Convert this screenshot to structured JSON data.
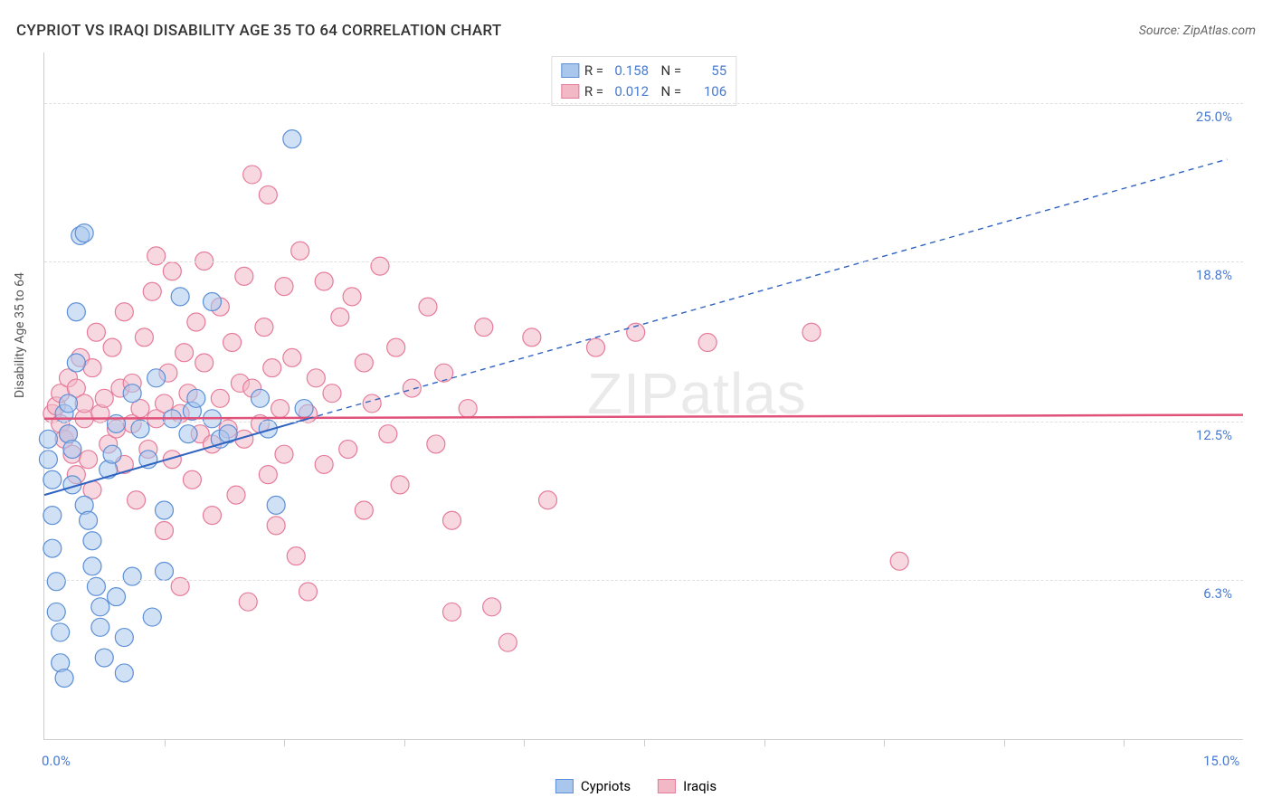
{
  "title": "CYPRIOT VS IRAQI DISABILITY AGE 35 TO 64 CORRELATION CHART",
  "source": "Source: ZipAtlas.com",
  "watermark": "ZIPatlas",
  "y_axis_label": "Disability Age 35 to 64",
  "chart": {
    "type": "scatter",
    "xlim": [
      0,
      15
    ],
    "ylim": [
      0,
      27
    ],
    "x_ticks_minor": [
      1.5,
      3.0,
      4.5,
      6.0,
      7.5,
      9.0,
      10.5,
      12.0,
      13.5
    ],
    "x_tick_labels": [
      {
        "v": 0.0,
        "label": "0.0%"
      },
      {
        "v": 15.0,
        "label": "15.0%"
      }
    ],
    "y_grid": [
      {
        "v": 6.3,
        "label": "6.3%"
      },
      {
        "v": 12.5,
        "label": "12.5%"
      },
      {
        "v": 18.8,
        "label": "18.8%"
      },
      {
        "v": 25.0,
        "label": "25.0%"
      }
    ],
    "background_color": "#ffffff",
    "grid_color": "#e0e0e0",
    "axis_color": "#cccccc",
    "series": {
      "cypriots": {
        "label": "Cypriots",
        "color_fill": "#a9c7ec",
        "color_stroke": "#5b8fd6",
        "fill_opacity": 0.55,
        "marker_radius": 10,
        "R": "0.158",
        "N": "55",
        "trend": {
          "solid": {
            "x1": 0.0,
            "y1": 9.6,
            "x2": 3.3,
            "y2": 12.6
          },
          "dashed": {
            "x1": 3.3,
            "y1": 12.6,
            "x2": 14.8,
            "y2": 22.8
          },
          "stroke": "#2f63c0",
          "width": 2
        },
        "points": [
          [
            0.05,
            11.0
          ],
          [
            0.05,
            11.8
          ],
          [
            0.1,
            10.2
          ],
          [
            0.1,
            8.8
          ],
          [
            0.1,
            7.5
          ],
          [
            0.15,
            6.2
          ],
          [
            0.15,
            5.0
          ],
          [
            0.2,
            4.2
          ],
          [
            0.2,
            3.0
          ],
          [
            0.25,
            2.4
          ],
          [
            0.25,
            12.8
          ],
          [
            0.3,
            13.2
          ],
          [
            0.3,
            12.0
          ],
          [
            0.35,
            11.4
          ],
          [
            0.35,
            10.0
          ],
          [
            0.4,
            14.8
          ],
          [
            0.4,
            16.8
          ],
          [
            0.45,
            19.8
          ],
          [
            0.5,
            19.9
          ],
          [
            0.5,
            9.2
          ],
          [
            0.55,
            8.6
          ],
          [
            0.6,
            7.8
          ],
          [
            0.6,
            6.8
          ],
          [
            0.65,
            6.0
          ],
          [
            0.7,
            5.2
          ],
          [
            0.7,
            4.4
          ],
          [
            0.75,
            3.2
          ],
          [
            0.8,
            10.6
          ],
          [
            0.85,
            11.2
          ],
          [
            0.9,
            12.4
          ],
          [
            0.9,
            5.6
          ],
          [
            1.0,
            4.0
          ],
          [
            1.0,
            2.6
          ],
          [
            1.1,
            6.4
          ],
          [
            1.1,
            13.6
          ],
          [
            1.2,
            12.2
          ],
          [
            1.3,
            11.0
          ],
          [
            1.35,
            4.8
          ],
          [
            1.4,
            14.2
          ],
          [
            1.5,
            9.0
          ],
          [
            1.5,
            6.6
          ],
          [
            1.6,
            12.6
          ],
          [
            1.7,
            17.4
          ],
          [
            1.8,
            12.0
          ],
          [
            1.85,
            12.9
          ],
          [
            1.9,
            13.4
          ],
          [
            2.1,
            12.6
          ],
          [
            2.1,
            17.2
          ],
          [
            2.2,
            11.8
          ],
          [
            2.3,
            12.0
          ],
          [
            2.7,
            13.4
          ],
          [
            2.8,
            12.2
          ],
          [
            2.9,
            9.2
          ],
          [
            3.1,
            23.6
          ],
          [
            3.25,
            13.0
          ]
        ]
      },
      "iraqis": {
        "label": "Iraqis",
        "color_fill": "#f3b8c6",
        "color_stroke": "#e57b9a",
        "fill_opacity": 0.55,
        "marker_radius": 10,
        "R": "0.012",
        "N": "106",
        "trend": {
          "solid": {
            "x1": 0.0,
            "y1": 12.6,
            "x2": 15.0,
            "y2": 12.75
          },
          "stroke": "#e0527a",
          "width": 2.5
        },
        "points": [
          [
            0.1,
            12.8
          ],
          [
            0.15,
            13.1
          ],
          [
            0.2,
            12.4
          ],
          [
            0.2,
            13.6
          ],
          [
            0.25,
            11.8
          ],
          [
            0.3,
            12.0
          ],
          [
            0.3,
            14.2
          ],
          [
            0.35,
            11.2
          ],
          [
            0.4,
            13.8
          ],
          [
            0.4,
            10.4
          ],
          [
            0.45,
            15.0
          ],
          [
            0.5,
            12.6
          ],
          [
            0.5,
            13.2
          ],
          [
            0.55,
            11.0
          ],
          [
            0.6,
            14.6
          ],
          [
            0.6,
            9.8
          ],
          [
            0.65,
            16.0
          ],
          [
            0.7,
            12.8
          ],
          [
            0.75,
            13.4
          ],
          [
            0.8,
            11.6
          ],
          [
            0.85,
            15.4
          ],
          [
            0.9,
            12.2
          ],
          [
            0.95,
            13.8
          ],
          [
            1.0,
            10.8
          ],
          [
            1.0,
            16.8
          ],
          [
            1.1,
            12.4
          ],
          [
            1.1,
            14.0
          ],
          [
            1.15,
            9.4
          ],
          [
            1.2,
            13.0
          ],
          [
            1.25,
            15.8
          ],
          [
            1.3,
            11.4
          ],
          [
            1.35,
            17.6
          ],
          [
            1.4,
            12.6
          ],
          [
            1.4,
            19.0
          ],
          [
            1.5,
            13.2
          ],
          [
            1.5,
            8.2
          ],
          [
            1.55,
            14.4
          ],
          [
            1.6,
            11.0
          ],
          [
            1.6,
            18.4
          ],
          [
            1.7,
            12.8
          ],
          [
            1.7,
            6.0
          ],
          [
            1.75,
            15.2
          ],
          [
            1.8,
            13.6
          ],
          [
            1.85,
            10.2
          ],
          [
            1.9,
            16.4
          ],
          [
            1.95,
            12.0
          ],
          [
            2.0,
            14.8
          ],
          [
            2.0,
            18.8
          ],
          [
            2.1,
            11.6
          ],
          [
            2.1,
            8.8
          ],
          [
            2.2,
            13.4
          ],
          [
            2.2,
            17.0
          ],
          [
            2.3,
            12.2
          ],
          [
            2.35,
            15.6
          ],
          [
            2.4,
            9.6
          ],
          [
            2.45,
            14.0
          ],
          [
            2.5,
            18.2
          ],
          [
            2.5,
            11.8
          ],
          [
            2.55,
            5.4
          ],
          [
            2.6,
            13.8
          ],
          [
            2.6,
            22.2
          ],
          [
            2.7,
            12.4
          ],
          [
            2.75,
            16.2
          ],
          [
            2.8,
            10.4
          ],
          [
            2.8,
            21.4
          ],
          [
            2.85,
            14.6
          ],
          [
            2.9,
            8.4
          ],
          [
            2.95,
            13.0
          ],
          [
            3.0,
            17.8
          ],
          [
            3.0,
            11.2
          ],
          [
            3.1,
            15.0
          ],
          [
            3.15,
            7.2
          ],
          [
            3.2,
            19.2
          ],
          [
            3.3,
            12.8
          ],
          [
            3.3,
            5.8
          ],
          [
            3.4,
            14.2
          ],
          [
            3.5,
            10.8
          ],
          [
            3.5,
            18.0
          ],
          [
            3.6,
            13.6
          ],
          [
            3.7,
            16.6
          ],
          [
            3.8,
            11.4
          ],
          [
            3.85,
            17.4
          ],
          [
            4.0,
            14.8
          ],
          [
            4.0,
            9.0
          ],
          [
            4.1,
            13.2
          ],
          [
            4.2,
            18.6
          ],
          [
            4.3,
            12.0
          ],
          [
            4.4,
            15.4
          ],
          [
            4.45,
            10.0
          ],
          [
            4.6,
            13.8
          ],
          [
            4.8,
            17.0
          ],
          [
            4.9,
            11.6
          ],
          [
            5.0,
            14.4
          ],
          [
            5.1,
            8.6
          ],
          [
            5.1,
            5.0
          ],
          [
            5.3,
            13.0
          ],
          [
            5.5,
            16.2
          ],
          [
            5.6,
            5.2
          ],
          [
            5.8,
            3.8
          ],
          [
            6.1,
            15.8
          ],
          [
            6.3,
            9.4
          ],
          [
            6.9,
            15.4
          ],
          [
            7.4,
            16.0
          ],
          [
            8.3,
            15.6
          ],
          [
            9.6,
            16.0
          ],
          [
            10.7,
            7.0
          ]
        ]
      }
    }
  },
  "colors": {
    "tick_label": "#4a7bd0",
    "text": "#555555"
  }
}
